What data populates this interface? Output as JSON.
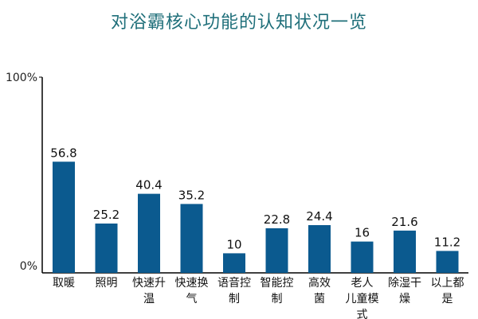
{
  "chart_data": {
    "type": "bar",
    "title": "对浴霸核心功能的认知状况一览",
    "categories": [
      [
        "取暖"
      ],
      [
        "照明"
      ],
      [
        "快速升",
        "温"
      ],
      [
        "快速换",
        "气"
      ],
      [
        "语音控",
        "制"
      ],
      [
        "智能控",
        "制"
      ],
      [
        "高效",
        "菌"
      ],
      [
        "老人",
        "儿童模",
        "式"
      ],
      [
        "除湿干",
        "燥"
      ],
      [
        "以上都",
        "是"
      ]
    ],
    "values": [
      56.8,
      25.2,
      40.4,
      35.2,
      10,
      22.8,
      24.4,
      16,
      21.6,
      11.2
    ],
    "value_labels": [
      "56.8",
      "25.2",
      "40.4",
      "35.2",
      "10",
      "22.8",
      "24.4",
      "16",
      "21.6",
      "11.2"
    ],
    "ylim": [
      0,
      100
    ],
    "y_tick_labels": [
      "100%",
      "0%"
    ],
    "bar_color": "#0b5a8f",
    "grid": false
  }
}
